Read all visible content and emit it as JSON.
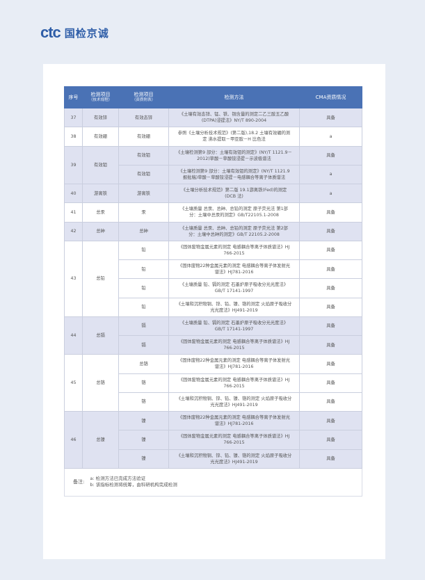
{
  "logo": {
    "mark": "ctc",
    "name": "国检京诚"
  },
  "colors": {
    "brand": "#2f5ea8",
    "header": "#4a72b5",
    "shade": "#dfe2f1",
    "background": "#e8edf5"
  },
  "table": {
    "headers": [
      {
        "main": "序号",
        "sub": ""
      },
      {
        "main": "检测项目",
        "sub": "（技术规程）"
      },
      {
        "main": "检测项目",
        "sub": "（资质附表）"
      },
      {
        "main": "检测方法",
        "sub": ""
      },
      {
        "main": "CMA资质情况",
        "sub": ""
      }
    ],
    "groups": [
      {
        "no": "37",
        "item": "有效锌",
        "shaded": true,
        "rows": [
          {
            "item2": "有效态锌",
            "method": "《土壤有效态锌、锰、铁、铜含量的测定二乙三胺五乙酸(DTPA)浸提法》NY/T 890-2004",
            "cma": "具备"
          }
        ]
      },
      {
        "no": "38",
        "item": "有效硼",
        "shaded": false,
        "rows": [
          {
            "item2": "有效硼",
            "method": "参照《土壤分析技术规范》(第二版),18.2 土壤有效硼的测定 沸水提取－甲亚胺－H 比色法",
            "cma": "a"
          }
        ]
      },
      {
        "no": "39",
        "item": "有效钼",
        "shaded": true,
        "rows": [
          {
            "item2": "有效钼",
            "method": "《土壤检测第9 部分：土壤有效钼的测定》(NY/T 1121.9－2012)草酸－草酸铵浸提－示波极谱法",
            "cma": "具备"
          },
          {
            "item2": "有效钼",
            "method": "《土壤检测第9 部分：土壤有效钼的测定》(NY/T 1121.9 报批稿)草酸－草酸铵浸提－电感耦合等离子体质谱法",
            "cma": "a"
          }
        ]
      },
      {
        "no": "40",
        "item": "游离铁",
        "shaded": true,
        "rows": [
          {
            "item2": "游离铁",
            "method": "《土壤分析技术规范》第二版 19.1游离铁(Fed)的测定(DCB 法)",
            "cma": "a"
          }
        ]
      },
      {
        "no": "41",
        "item": "总汞",
        "shaded": false,
        "rows": [
          {
            "item2": "汞",
            "method": "《土壤质量 总汞、总砷、总铅的测定 原子荧光法 第1部分：土壤中总汞的测定》GB/T22105.1-2008",
            "cma": "具备"
          }
        ]
      },
      {
        "no": "42",
        "item": "总砷",
        "shaded": true,
        "rows": [
          {
            "item2": "总砷",
            "method": "《土壤质量 总汞、总砷、总铅的测定 原子荧光法 第2部分：土壤中总砷的测定》GB/T 22105.2-2008",
            "cma": "具备"
          }
        ]
      },
      {
        "no": "43",
        "item": "总铅",
        "shaded": false,
        "rows": [
          {
            "item2": "铅",
            "method": "《固体废物金属元素的测定 电感耦合等离子体质谱法》HJ 766-2015",
            "cma": "具备"
          },
          {
            "item2": "铅",
            "method": "《固体废物22种金属元素的测定 电感耦合等离子体发射光谱法》HJ781-2016",
            "cma": "具备"
          },
          {
            "item2": "铅",
            "method": "《土壤质量 铅、镉的测定 石墨炉原子吸收分光光度法》GB/T 17141-1997",
            "cma": "具备"
          },
          {
            "item2": "铅",
            "method": "《土壤和沉积物铜、锌、铅、镍、铬的测定 火焰原子吸收分光光度法》HJ491-2019",
            "cma": "具备"
          }
        ]
      },
      {
        "no": "44",
        "item": "总镉",
        "shaded": true,
        "rows": [
          {
            "item2": "镉",
            "method": "《土壤质量 铅、镉的测定 石墨炉原子吸收分光光度法》GB/T 17141-1997",
            "cma": "具备"
          },
          {
            "item2": "镉",
            "method": "《固体废物金属元素的测定 电感耦合等离子体质谱法》HJ 766-2015",
            "cma": "具备"
          }
        ]
      },
      {
        "no": "45",
        "item": "总铬",
        "shaded": false,
        "rows": [
          {
            "item2": "总铬",
            "method": "《固体废物22种金属元素的测定 电感耦合等离子体发射光谱法》HJ781-2016",
            "cma": "具备"
          },
          {
            "item2": "铬",
            "method": "《固体废物金属元素的测定 电感耦合等离子体质谱法》HJ 766-2015",
            "cma": "具备"
          },
          {
            "item2": "铬",
            "method": "《土壤和沉积物铜、锌、铅、镍、铬的测定 火焰原子吸收分光光度法》HJ491-2019",
            "cma": "具备"
          }
        ]
      },
      {
        "no": "46",
        "item": "总镍",
        "shaded": true,
        "rows": [
          {
            "item2": "镍",
            "method": "《固体废物22种金属元素的测定 电感耦合等离子体发射光谱法》HJ781-2016",
            "cma": "具备"
          },
          {
            "item2": "镍",
            "method": "《固体废物金属元素的测定 电感耦合等离子体质谱法》HJ 766-2015",
            "cma": "具备"
          },
          {
            "item2": "镍",
            "method": "《土壤和沉积物铜、锌、铅、镍、铬的测定 火焰原子吸收分光光度法》HJ491-2019",
            "cma": "具备"
          }
        ]
      }
    ],
    "notes": {
      "label": "备注:",
      "lines": [
        "a: 检测方法已完成方法验证",
        "b: 该指标检测将统筹，由科研机构完成检测"
      ]
    }
  }
}
